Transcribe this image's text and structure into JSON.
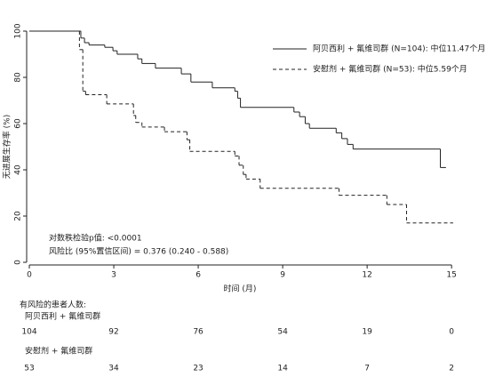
{
  "chart_data": {
    "type": "step",
    "y_label": "无进展生存率 (%)",
    "x_label": "时间 (月)",
    "xlim": [
      0,
      15.5
    ],
    "ylim": [
      0,
      100
    ],
    "xticks": [
      0,
      3,
      6,
      9,
      12,
      15
    ],
    "yticks": [
      0,
      20,
      40,
      60,
      80,
      100
    ],
    "legend_position": "upper right",
    "series": [
      {
        "name": "阿贝西利 + 氟维司群 (N=104): 中位11.47个月",
        "color": "#222222",
        "line_style": "solid",
        "x": [
          0,
          1.83,
          1.96,
          2.12,
          2.68,
          2.97,
          3.12,
          3.85,
          4.0,
          4.48,
          5.4,
          5.74,
          6.5,
          7.3,
          7.4,
          7.5,
          9.4,
          9.6,
          9.8,
          9.95,
          10.9,
          11.1,
          11.3,
          11.5,
          14.6,
          14.8
        ],
        "values": [
          100,
          97,
          95,
          94,
          93,
          91.5,
          90,
          88,
          86,
          84,
          81.5,
          78,
          75.5,
          74,
          71,
          67,
          65,
          63,
          60,
          58,
          56,
          53.5,
          51,
          49,
          41,
          41
        ]
      },
      {
        "name": "安慰剂 + 氟维司群 (N=53): 中位5.59个月",
        "color": "#222222",
        "line_style": "dashed",
        "x": [
          0,
          1.78,
          1.9,
          2.0,
          2.75,
          3.7,
          3.78,
          4.0,
          4.8,
          5.6,
          5.7,
          7.3,
          7.45,
          7.6,
          7.7,
          8.2,
          11.0,
          12.7,
          13.4,
          15.05
        ],
        "values": [
          100,
          92,
          74,
          72.5,
          68.5,
          63.5,
          60.5,
          58.5,
          56.5,
          53,
          48,
          46,
          42,
          38,
          36,
          32,
          29,
          25,
          17,
          17
        ]
      }
    ],
    "annotations": [
      "对数秩检验p值: <0.0001",
      "风险比 (95%置信区间) = 0.376 (0.240 - 0.588)"
    ]
  },
  "risk_table": {
    "title": "有风险的患者人数:",
    "groups": [
      {
        "name": "阿贝西利 + 氟维司群",
        "counts": [
          "104",
          "92",
          "76",
          "54",
          "19",
          "0"
        ]
      },
      {
        "name": "安慰剂 + 氟维司群",
        "counts": [
          "53",
          "34",
          "23",
          "14",
          "7",
          "2"
        ]
      }
    ]
  }
}
